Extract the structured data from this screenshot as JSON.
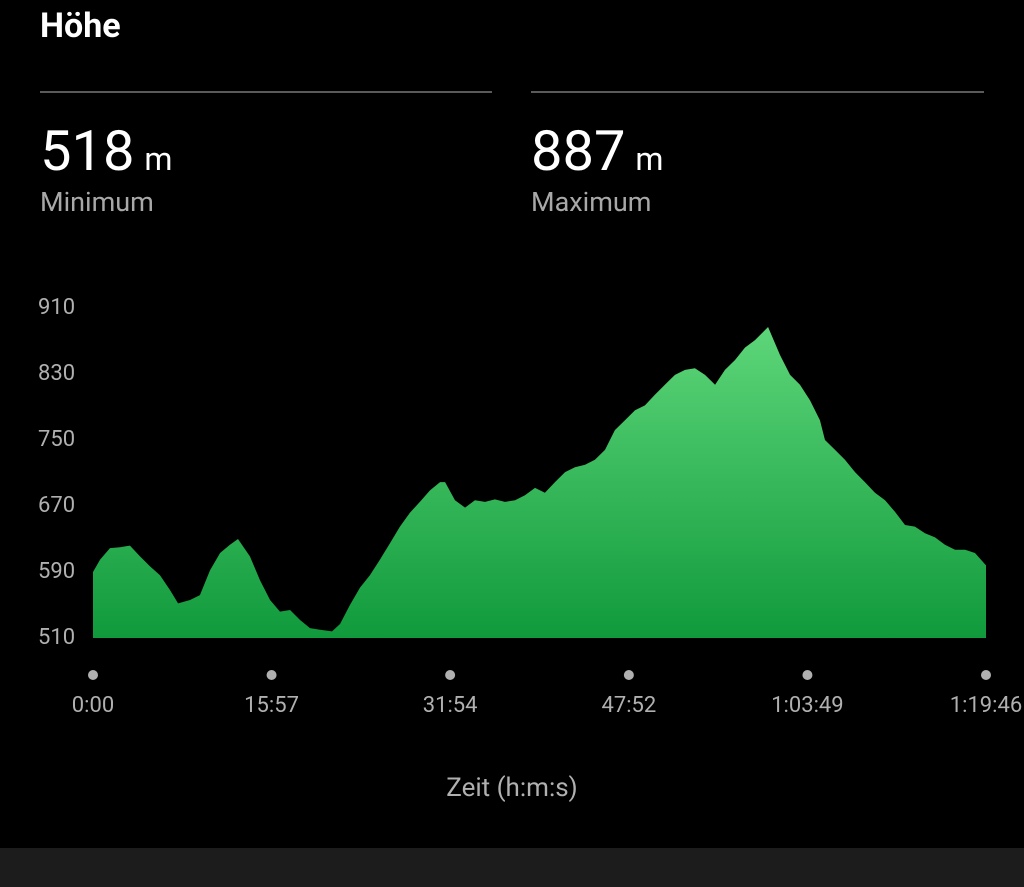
{
  "header": {
    "title": "Höhe"
  },
  "stats": [
    {
      "value": 518,
      "unit": "m",
      "label": "Minimum"
    },
    {
      "value": 887,
      "unit": "m",
      "label": "Maximum"
    }
  ],
  "chart_data": {
    "type": "area",
    "x_label": "Zeit (h:m:s)",
    "x": [
      0,
      38,
      91,
      145,
      198,
      252,
      305,
      359,
      413,
      456,
      520,
      573,
      627,
      681,
      734,
      777,
      841,
      895,
      949,
      1002,
      1056,
      1109,
      1163,
      1217,
      1281,
      1324,
      1377,
      1431,
      1484,
      1538,
      1592,
      1645,
      1699,
      1752,
      1806,
      1860,
      1887,
      1940,
      1994,
      2047,
      2101,
      2154,
      2208,
      2262,
      2315,
      2369,
      2422,
      2476,
      2530,
      2583,
      2637,
      2690,
      2744,
      2797,
      2851,
      2905,
      2958,
      3012,
      3065,
      3119,
      3173,
      3226,
      3280,
      3334,
      3387,
      3441,
      3494,
      3548,
      3618,
      3682,
      3736,
      3789,
      3843,
      3896,
      3923,
      3977,
      4030,
      4084,
      4137,
      4191,
      4245,
      4298,
      4352,
      4405,
      4459,
      4513,
      4566,
      4620,
      4674,
      4727,
      4786
    ],
    "values": [
      590,
      605,
      619,
      620,
      622,
      609,
      597,
      586,
      568,
      552,
      556,
      562,
      592,
      613,
      623,
      630,
      609,
      580,
      556,
      542,
      544,
      532,
      522,
      520,
      518,
      527,
      550,
      571,
      586,
      605,
      625,
      645,
      662,
      675,
      689,
      699,
      699,
      677,
      668,
      677,
      675,
      678,
      675,
      677,
      683,
      692,
      686,
      699,
      711,
      717,
      720,
      726,
      738,
      762,
      774,
      786,
      792,
      805,
      817,
      829,
      835,
      837,
      829,
      817,
      835,
      847,
      862,
      871,
      887,
      853,
      829,
      817,
      798,
      774,
      750,
      738,
      726,
      711,
      699,
      686,
      677,
      663,
      647,
      645,
      637,
      632,
      623,
      617,
      617,
      613,
      598
    ],
    "xlim": [
      0,
      4786
    ],
    "xticks": [
      {
        "value": 0,
        "label": "0:00"
      },
      {
        "value": 957,
        "label": "15:57"
      },
      {
        "value": 1914,
        "label": "31:54"
      },
      {
        "value": 2872,
        "label": "47:52"
      },
      {
        "value": 3829,
        "label": "1:03:49"
      },
      {
        "value": 4786,
        "label": "1:19:46"
      }
    ],
    "ylim": [
      510,
      910
    ],
    "yticks": [
      510,
      590,
      670,
      750,
      830,
      910
    ]
  }
}
